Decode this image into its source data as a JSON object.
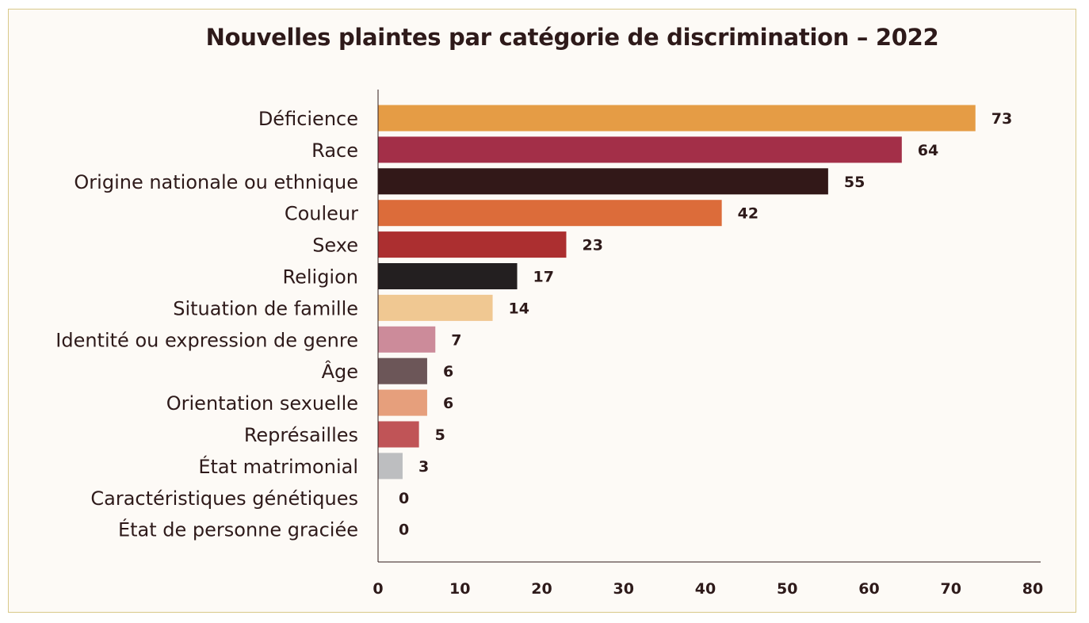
{
  "chart_data": {
    "type": "bar",
    "orientation": "horizontal",
    "title": "Nouvelles plaintes par catégorie de discrimination – 2022",
    "xlabel": "",
    "ylabel": "",
    "xlim": [
      0,
      80
    ],
    "xticks": [
      0,
      10,
      20,
      30,
      40,
      50,
      60,
      70,
      80
    ],
    "grid": false,
    "categories": [
      "Déficience",
      "Race",
      "Origine nationale ou ethnique",
      "Couleur",
      "Sexe",
      "Religion",
      "Situation de famille",
      "Identité ou expression de genre",
      "Âge",
      "Orientation sexuelle",
      "Représailles",
      "État matrimonial",
      "Caractéristiques génétiques",
      "État de personne graciée"
    ],
    "values": [
      73,
      64,
      55,
      42,
      23,
      17,
      14,
      7,
      6,
      6,
      5,
      3,
      0,
      0
    ],
    "colors": [
      "#e59c45",
      "#a32f48",
      "#321818",
      "#dc6c3a",
      "#ac2f30",
      "#231f20",
      "#f0c892",
      "#cc8b9a",
      "#6c5658",
      "#e69f7c",
      "#c05457",
      "#bdbec0",
      "#bdbec0",
      "#bdbec0"
    ]
  }
}
